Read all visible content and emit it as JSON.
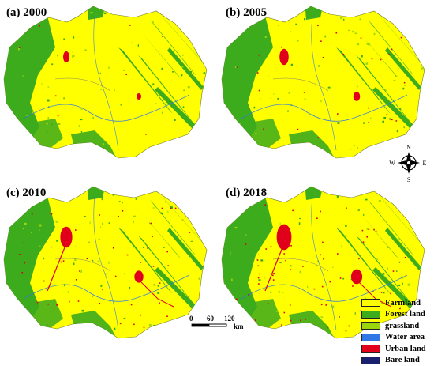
{
  "panels": [
    {
      "label": "(a) 2000",
      "year": 2000
    },
    {
      "label": "(b) 2005",
      "year": 2005
    },
    {
      "label": "(c) 2010",
      "year": 2010
    },
    {
      "label": "(d) 2018",
      "year": 2018
    }
  ],
  "compass": {
    "n": "N",
    "s": "S",
    "e": "E",
    "w": "W"
  },
  "scale_bar": {
    "ticks": [
      "0",
      "60",
      "120"
    ],
    "unit": "km"
  },
  "legend": [
    {
      "label": "Farmland",
      "color": "#ffff00"
    },
    {
      "label": "Forest land",
      "color": "#3cab1c"
    },
    {
      "label": "grassland",
      "color": "#9bd60c"
    },
    {
      "label": "Water area",
      "color": "#2f78e6"
    },
    {
      "label": "Urban land",
      "color": "#e0001b"
    },
    {
      "label": "Bare land",
      "color": "#1a1f6e"
    }
  ]
}
